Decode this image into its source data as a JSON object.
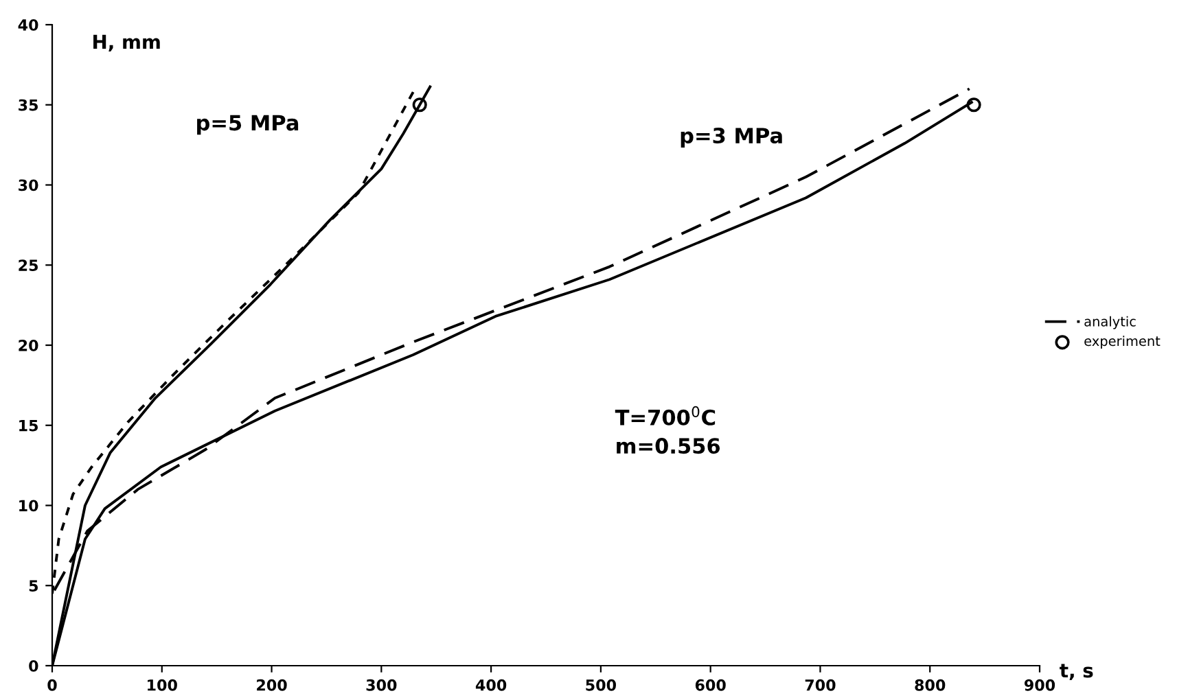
{
  "chart_data": {
    "type": "line",
    "xlabel": "t, s",
    "ylabel": "H, mm",
    "annotations": [
      "p=5 MPa",
      "p=3 MPa",
      "T=700$^{0}$C\nm=0.556"
    ],
    "xlim": [
      0,
      900
    ],
    "ylim": [
      0,
      40
    ],
    "xticks": [
      0,
      100,
      200,
      300,
      400,
      500,
      600,
      700,
      800,
      900
    ],
    "yticks": [
      0,
      5,
      10,
      15,
      20,
      25,
      30,
      35,
      40
    ],
    "grid": false,
    "legend": "right",
    "marker": "none",
    "series": [
      {
        "color": "#000000",
        "line_style": "solid",
        "x": [
          0,
          15,
          30,
          53,
          94,
          145,
          199,
          253,
          300,
          320,
          345
        ],
        "values": [
          0,
          5.0,
          10,
          13.3,
          16.7,
          20.1,
          23.8,
          27.8,
          31,
          33.2,
          36.2
        ]
      },
      {
        "color": "#000000",
        "line_style": "dotted",
        "x": [
          0,
          6,
          19,
          36,
          69,
          111,
          161,
          220,
          279,
          329
        ],
        "values": [
          4.5,
          7.9,
          10.7,
          12.4,
          15.2,
          18.2,
          21.6,
          25.5,
          29.5,
          35.8
        ]
      },
      {
        "color": "#000000",
        "line_style": "solid",
        "x": [
          0,
          30,
          48,
          99,
          203,
          329,
          404,
          508,
          687,
          777,
          839
        ],
        "values": [
          0,
          7.9,
          9.8,
          12.4,
          15.9,
          19.4,
          21.8,
          24.1,
          29.2,
          32.6,
          35.2
        ]
      },
      {
        "name": "analytic",
        "color": "#000000",
        "line_style": "dashed",
        "x": [
          2,
          32,
          78,
          140,
          203,
          329,
          508,
          687,
          836
        ],
        "values": [
          4.7,
          8.4,
          11,
          13.5,
          16.7,
          20.2,
          24.9,
          30.5,
          36.0
        ]
      },
      {
        "name": "experiment",
        "type": "scatter",
        "marker": "circle",
        "color": "#000000",
        "x": [
          335,
          840
        ],
        "values": [
          35,
          35
        ]
      }
    ]
  }
}
